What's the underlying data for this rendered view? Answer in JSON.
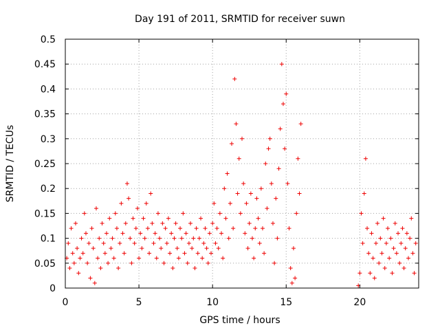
{
  "chart_data": {
    "type": "scatter",
    "title": "Day 191 of 2011, SRMTID for receiver suwn",
    "xlabel": "GPS time / hours",
    "ylabel": "SRMTID / TECUs",
    "xlim": [
      0,
      24
    ],
    "ylim": [
      0,
      0.5
    ],
    "xticks": [
      0,
      5,
      10,
      15,
      20
    ],
    "xtick_labels": [
      "0",
      "5",
      "10",
      "15",
      "20"
    ],
    "yticks": [
      0,
      0.05,
      0.1,
      0.15,
      0.2,
      0.25,
      0.3,
      0.35,
      0.4,
      0.45,
      0.5
    ],
    "ytick_labels": [
      "0",
      "0.05",
      "0.1",
      "0.15",
      "0.2",
      "0.25",
      "0.3",
      "0.35",
      "0.4",
      "0.45",
      "0.5"
    ],
    "grid": true,
    "marker": "+",
    "color": "#ee0000",
    "series": [
      {
        "points": [
          [
            0.1,
            0.06
          ],
          [
            0.2,
            0.09
          ],
          [
            0.3,
            0.04
          ],
          [
            0.4,
            0.12
          ],
          [
            0.5,
            0.07
          ],
          [
            0.6,
            0.05
          ],
          [
            0.7,
            0.13
          ],
          [
            0.8,
            0.08
          ],
          [
            0.9,
            0.03
          ],
          [
            1.0,
            0.06
          ],
          [
            1.1,
            0.1
          ],
          [
            1.2,
            0.07
          ],
          [
            1.3,
            0.15
          ],
          [
            1.4,
            0.11
          ],
          [
            1.5,
            0.05
          ],
          [
            1.6,
            0.09
          ],
          [
            1.7,
            0.02
          ],
          [
            1.8,
            0.12
          ],
          [
            1.9,
            0.08
          ],
          [
            2.0,
            0.01
          ],
          [
            2.1,
            0.16
          ],
          [
            2.2,
            0.06
          ],
          [
            2.3,
            0.1
          ],
          [
            2.4,
            0.04
          ],
          [
            2.5,
            0.13
          ],
          [
            2.6,
            0.09
          ],
          [
            2.7,
            0.07
          ],
          [
            2.8,
            0.11
          ],
          [
            2.9,
            0.05
          ],
          [
            3.0,
            0.14
          ],
          [
            3.1,
            0.08
          ],
          [
            3.2,
            0.1
          ],
          [
            3.3,
            0.06
          ],
          [
            3.4,
            0.15
          ],
          [
            3.5,
            0.12
          ],
          [
            3.6,
            0.04
          ],
          [
            3.7,
            0.09
          ],
          [
            3.8,
            0.17
          ],
          [
            3.9,
            0.11
          ],
          [
            4.0,
            0.07
          ],
          [
            4.1,
            0.13
          ],
          [
            4.2,
            0.21
          ],
          [
            4.3,
            0.18
          ],
          [
            4.4,
            0.1
          ],
          [
            4.5,
            0.05
          ],
          [
            4.6,
            0.14
          ],
          [
            4.7,
            0.09
          ],
          [
            4.8,
            0.12
          ],
          [
            4.9,
            0.16
          ],
          [
            5.0,
            0.06
          ],
          [
            5.1,
            0.11
          ],
          [
            5.2,
            0.08
          ],
          [
            5.3,
            0.14
          ],
          [
            5.4,
            0.1
          ],
          [
            5.5,
            0.17
          ],
          [
            5.6,
            0.12
          ],
          [
            5.7,
            0.07
          ],
          [
            5.8,
            0.19
          ],
          [
            5.9,
            0.13
          ],
          [
            6.0,
            0.09
          ],
          [
            6.1,
            0.11
          ],
          [
            6.2,
            0.06
          ],
          [
            6.3,
            0.15
          ],
          [
            6.4,
            0.1
          ],
          [
            6.5,
            0.08
          ],
          [
            6.6,
            0.13
          ],
          [
            6.7,
            0.05
          ],
          [
            6.8,
            0.12
          ],
          [
            6.9,
            0.09
          ],
          [
            7.0,
            0.14
          ],
          [
            7.1,
            0.07
          ],
          [
            7.2,
            0.11
          ],
          [
            7.3,
            0.04
          ],
          [
            7.4,
            0.1
          ],
          [
            7.5,
            0.13
          ],
          [
            7.6,
            0.08
          ],
          [
            7.7,
            0.06
          ],
          [
            7.8,
            0.12
          ],
          [
            7.9,
            0.1
          ],
          [
            8.0,
            0.15
          ],
          [
            8.1,
            0.07
          ],
          [
            8.2,
            0.11
          ],
          [
            8.3,
            0.05
          ],
          [
            8.4,
            0.09
          ],
          [
            8.5,
            0.13
          ],
          [
            8.6,
            0.08
          ],
          [
            8.7,
            0.1
          ],
          [
            8.8,
            0.04
          ],
          [
            8.9,
            0.12
          ],
          [
            9.0,
            0.07
          ],
          [
            9.1,
            0.1
          ],
          [
            9.2,
            0.14
          ],
          [
            9.3,
            0.06
          ],
          [
            9.4,
            0.09
          ],
          [
            9.5,
            0.12
          ],
          [
            9.6,
            0.08
          ],
          [
            9.7,
            0.05
          ],
          [
            9.8,
            0.11
          ],
          [
            9.9,
            0.07
          ],
          [
            10.0,
            0.13
          ],
          [
            10.1,
            0.17
          ],
          [
            10.2,
            0.09
          ],
          [
            10.3,
            0.12
          ],
          [
            10.4,
            0.08
          ],
          [
            10.5,
            0.15
          ],
          [
            10.6,
            0.11
          ],
          [
            10.7,
            0.06
          ],
          [
            10.8,
            0.2
          ],
          [
            10.9,
            0.14
          ],
          [
            11.0,
            0.23
          ],
          [
            11.1,
            0.1
          ],
          [
            11.2,
            0.17
          ],
          [
            11.3,
            0.29
          ],
          [
            11.4,
            0.12
          ],
          [
            11.5,
            0.42
          ],
          [
            11.6,
            0.33
          ],
          [
            11.7,
            0.19
          ],
          [
            11.8,
            0.26
          ],
          [
            11.9,
            0.15
          ],
          [
            12.0,
            0.3
          ],
          [
            12.1,
            0.21
          ],
          [
            12.2,
            0.11
          ],
          [
            12.3,
            0.17
          ],
          [
            12.4,
            0.08
          ],
          [
            12.5,
            0.13
          ],
          [
            12.6,
            0.19
          ],
          [
            12.7,
            0.1
          ],
          [
            12.8,
            0.06
          ],
          [
            12.9,
            0.12
          ],
          [
            13.0,
            0.18
          ],
          [
            13.1,
            0.14
          ],
          [
            13.2,
            0.09
          ],
          [
            13.3,
            0.2
          ],
          [
            13.4,
            0.12
          ],
          [
            13.5,
            0.07
          ],
          [
            13.6,
            0.25
          ],
          [
            13.7,
            0.16
          ],
          [
            13.8,
            0.28
          ],
          [
            13.9,
            0.3
          ],
          [
            14.0,
            0.21
          ],
          [
            14.1,
            0.13
          ],
          [
            14.2,
            0.05
          ],
          [
            14.3,
            0.18
          ],
          [
            14.4,
            0.1
          ],
          [
            14.5,
            0.24
          ],
          [
            14.6,
            0.32
          ],
          [
            14.7,
            0.45
          ],
          [
            14.8,
            0.37
          ],
          [
            14.9,
            0.28
          ],
          [
            15.0,
            0.39
          ],
          [
            15.1,
            0.21
          ],
          [
            15.2,
            0.12
          ],
          [
            15.3,
            0.04
          ],
          [
            15.4,
            0.01
          ],
          [
            15.5,
            0.08
          ],
          [
            15.6,
            0.02
          ],
          [
            15.7,
            0.15
          ],
          [
            15.8,
            0.26
          ],
          [
            15.9,
            0.19
          ],
          [
            16.0,
            0.33
          ],
          [
            19.9,
            0.005
          ],
          [
            20.0,
            0.03
          ],
          [
            20.1,
            0.15
          ],
          [
            20.2,
            0.09
          ],
          [
            20.3,
            0.19
          ],
          [
            20.4,
            0.26
          ],
          [
            20.5,
            0.12
          ],
          [
            20.6,
            0.07
          ],
          [
            20.7,
            0.03
          ],
          [
            20.8,
            0.11
          ],
          [
            20.9,
            0.06
          ],
          [
            21.0,
            0.02
          ],
          [
            21.1,
            0.09
          ],
          [
            21.2,
            0.13
          ],
          [
            21.3,
            0.05
          ],
          [
            21.4,
            0.1
          ],
          [
            21.5,
            0.07
          ],
          [
            21.6,
            0.14
          ],
          [
            21.7,
            0.04
          ],
          [
            21.8,
            0.09
          ],
          [
            21.9,
            0.12
          ],
          [
            22.0,
            0.06
          ],
          [
            22.1,
            0.1
          ],
          [
            22.2,
            0.03
          ],
          [
            22.3,
            0.08
          ],
          [
            22.4,
            0.13
          ],
          [
            22.5,
            0.07
          ],
          [
            22.6,
            0.11
          ],
          [
            22.7,
            0.05
          ],
          [
            22.8,
            0.09
          ],
          [
            22.9,
            0.12
          ],
          [
            23.0,
            0.04
          ],
          [
            23.1,
            0.08
          ],
          [
            23.2,
            0.11
          ],
          [
            23.3,
            0.06
          ],
          [
            23.4,
            0.1
          ],
          [
            23.5,
            0.14
          ],
          [
            23.6,
            0.07
          ],
          [
            23.7,
            0.03
          ],
          [
            23.8,
            0.09
          ]
        ]
      }
    ]
  }
}
